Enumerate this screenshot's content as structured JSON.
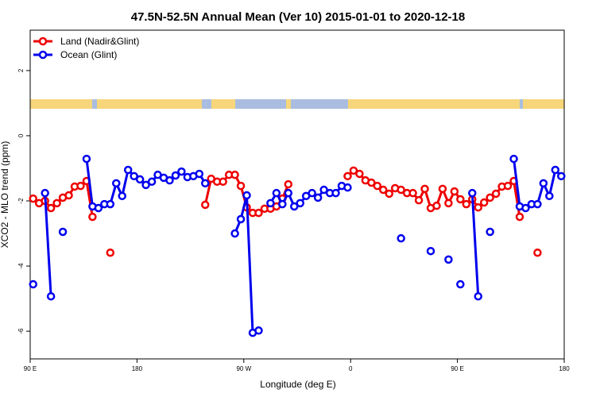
{
  "chart_data": {
    "type": "line",
    "title": "47.5N-52.5N Annual Mean (Ver 10)   2015-01-01 to 2020-12-18",
    "x_label": "Longitude (deg E)",
    "y_label": "XCO2 - MLO trend (ppm)",
    "x": [
      92.5,
      97.5,
      102.5,
      107.5,
      112.5,
      117.5,
      122.5,
      127.5,
      132.5,
      137.5,
      142.5,
      147.5,
      152.5,
      157.5,
      162.5,
      167.5,
      172.5,
      177.5,
      182.5,
      187.5,
      192.5,
      197.5,
      202.5,
      207.5,
      212.5,
      217.5,
      222.5,
      227.5,
      232.5,
      237.5,
      242.5,
      247.5,
      252.5,
      257.5,
      262.5,
      267.5,
      272.5,
      277.5,
      282.5,
      287.5,
      292.5,
      297.5,
      302.5,
      307.5,
      312.5,
      317.5,
      322.5,
      327.5,
      332.5,
      337.5,
      342.5,
      347.5,
      352.5,
      357.5,
      362.5,
      367.5,
      372.5,
      377.5,
      382.5,
      387.5,
      392.5,
      397.5,
      402.5,
      407.5,
      412.5,
      417.5,
      422.5,
      427.5,
      432.5,
      437.5,
      442.5,
      447.5,
      452.5,
      457.5,
      462.5,
      467.5,
      472.5,
      477.5,
      482.5,
      487.5,
      492.5,
      497.5,
      502.5,
      507.5,
      512.5,
      517.5,
      522.5,
      527.5,
      532.5,
      537.5
    ],
    "series": [
      {
        "name": "Land (Nadir&Glint)",
        "color": "#ee0000",
        "values": [
          -1.93,
          -2.07,
          -2.0,
          -2.22,
          -2.07,
          -1.9,
          -1.83,
          -1.56,
          -1.54,
          -1.39,
          -2.49,
          null,
          null,
          -3.59,
          null,
          null,
          null,
          null,
          null,
          null,
          null,
          null,
          null,
          null,
          null,
          null,
          null,
          null,
          null,
          -2.12,
          -1.32,
          -1.41,
          -1.41,
          -1.2,
          -1.2,
          -1.54,
          -2.2,
          -2.37,
          -2.37,
          -2.24,
          -2.24,
          -2.17,
          -1.93,
          -1.49,
          null,
          null,
          null,
          null,
          null,
          null,
          null,
          null,
          null,
          -1.24,
          -1.07,
          -1.17,
          -1.37,
          -1.44,
          -1.54,
          -1.66,
          -1.78,
          -1.61,
          -1.66,
          -1.76,
          -1.76,
          -1.98,
          -1.63,
          -2.22,
          -2.15,
          -1.63,
          -2.07,
          -1.71,
          -1.95,
          -2.1,
          -1.95,
          -2.2,
          -2.05,
          -1.9,
          -1.78,
          -1.56,
          -1.54,
          -1.39,
          -2.49,
          null,
          null,
          -3.59,
          null,
          null,
          null,
          null
        ]
      },
      {
        "name": "Ocean (Glint)",
        "color": "#0000ee",
        "values": [
          -4.56,
          null,
          -1.76,
          -4.93,
          null,
          -2.95,
          null,
          null,
          null,
          -0.71,
          -2.17,
          -2.22,
          -2.1,
          -2.1,
          -1.46,
          -1.85,
          -1.05,
          -1.24,
          -1.34,
          -1.51,
          -1.41,
          -1.2,
          -1.29,
          -1.37,
          -1.22,
          -1.1,
          -1.27,
          -1.24,
          -1.17,
          -1.46,
          null,
          null,
          null,
          null,
          -3.0,
          -2.56,
          -1.83,
          -6.05,
          -5.98,
          null,
          -2.07,
          -1.76,
          -2.1,
          -1.76,
          -2.17,
          -2.07,
          -1.85,
          -1.76,
          -1.9,
          -1.66,
          -1.76,
          -1.76,
          -1.54,
          -1.59,
          null,
          null,
          null,
          null,
          null,
          null,
          null,
          null,
          -3.15,
          null,
          null,
          null,
          null,
          -3.54,
          null,
          null,
          -3.8,
          null,
          -4.56,
          null,
          -1.76,
          -4.93,
          null,
          -2.95,
          null,
          null,
          null,
          -0.71,
          -2.17,
          -2.22,
          -2.1,
          -2.1,
          -1.46,
          -1.85,
          -1.05,
          -1.24
        ]
      }
    ],
    "xlim": [
      90,
      540
    ],
    "xticks": [
      {
        "value": 90,
        "label": "90 E"
      },
      180,
      {
        "value": 270,
        "label": "90 W"
      },
      {
        "value": 360,
        "label": "0"
      },
      {
        "value": 450,
        "label": "90 E"
      },
      {
        "value": 540,
        "label": "180"
      }
    ],
    "ylim": [
      -6.85,
      3.24
    ],
    "yticks": [
      2,
      0,
      -2,
      -4,
      -6
    ],
    "legend": "topleft"
  }
}
